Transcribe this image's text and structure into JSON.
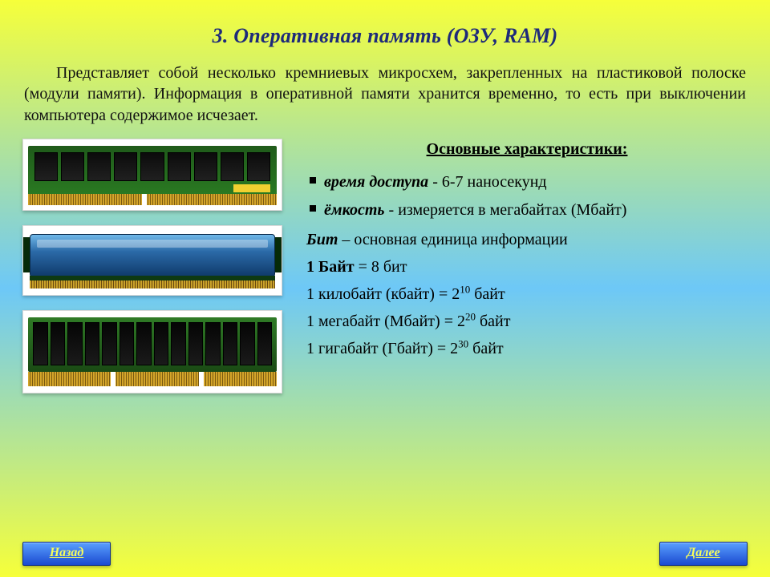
{
  "title": "3. Оперативная память (ОЗУ, RAM)",
  "intro": "Представляет собой несколько кремниевых микросхем, закрепленных на пластиковой полоске (модули памяти). Информация в оперативной памяти хранится временно, то есть при выключении компьютера содержимое исчезает.",
  "subheading": "Основные характеристики:",
  "bullets": {
    "access_label": "время доступа",
    "access_value": " - 6-7 наносекунд",
    "capacity_label": "ёмкость",
    "capacity_value": " - измеряется в мегабайтах (Мбайт)"
  },
  "bit": {
    "term": "Бит",
    "rest": " – основная единица информации"
  },
  "units": [
    {
      "lhs": "1 Байт",
      "eq": " = 8 бит",
      "bold": true,
      "sup": ""
    },
    {
      "lhs": "1 килобайт (кбайт)",
      "eq": " = 2",
      "sup": "10",
      "tail": " байт",
      "bold": false
    },
    {
      "lhs": "1 мегабайт (Мбайт)",
      "eq": " = 2",
      "sup": "20",
      "tail": " байт",
      "bold": false
    },
    {
      "lhs": "1 гигабайт (Гбайт)",
      "eq": " = 2",
      "sup": "30",
      "tail": " байт",
      "bold": false
    }
  ],
  "nav": {
    "back": "Назад",
    "next": "Далее"
  },
  "colors": {
    "title": "#1e2a7a",
    "button_bg_top": "#5aa0ff",
    "button_bg_bottom": "#1a4ad0",
    "button_text": "#f9ff5a"
  }
}
